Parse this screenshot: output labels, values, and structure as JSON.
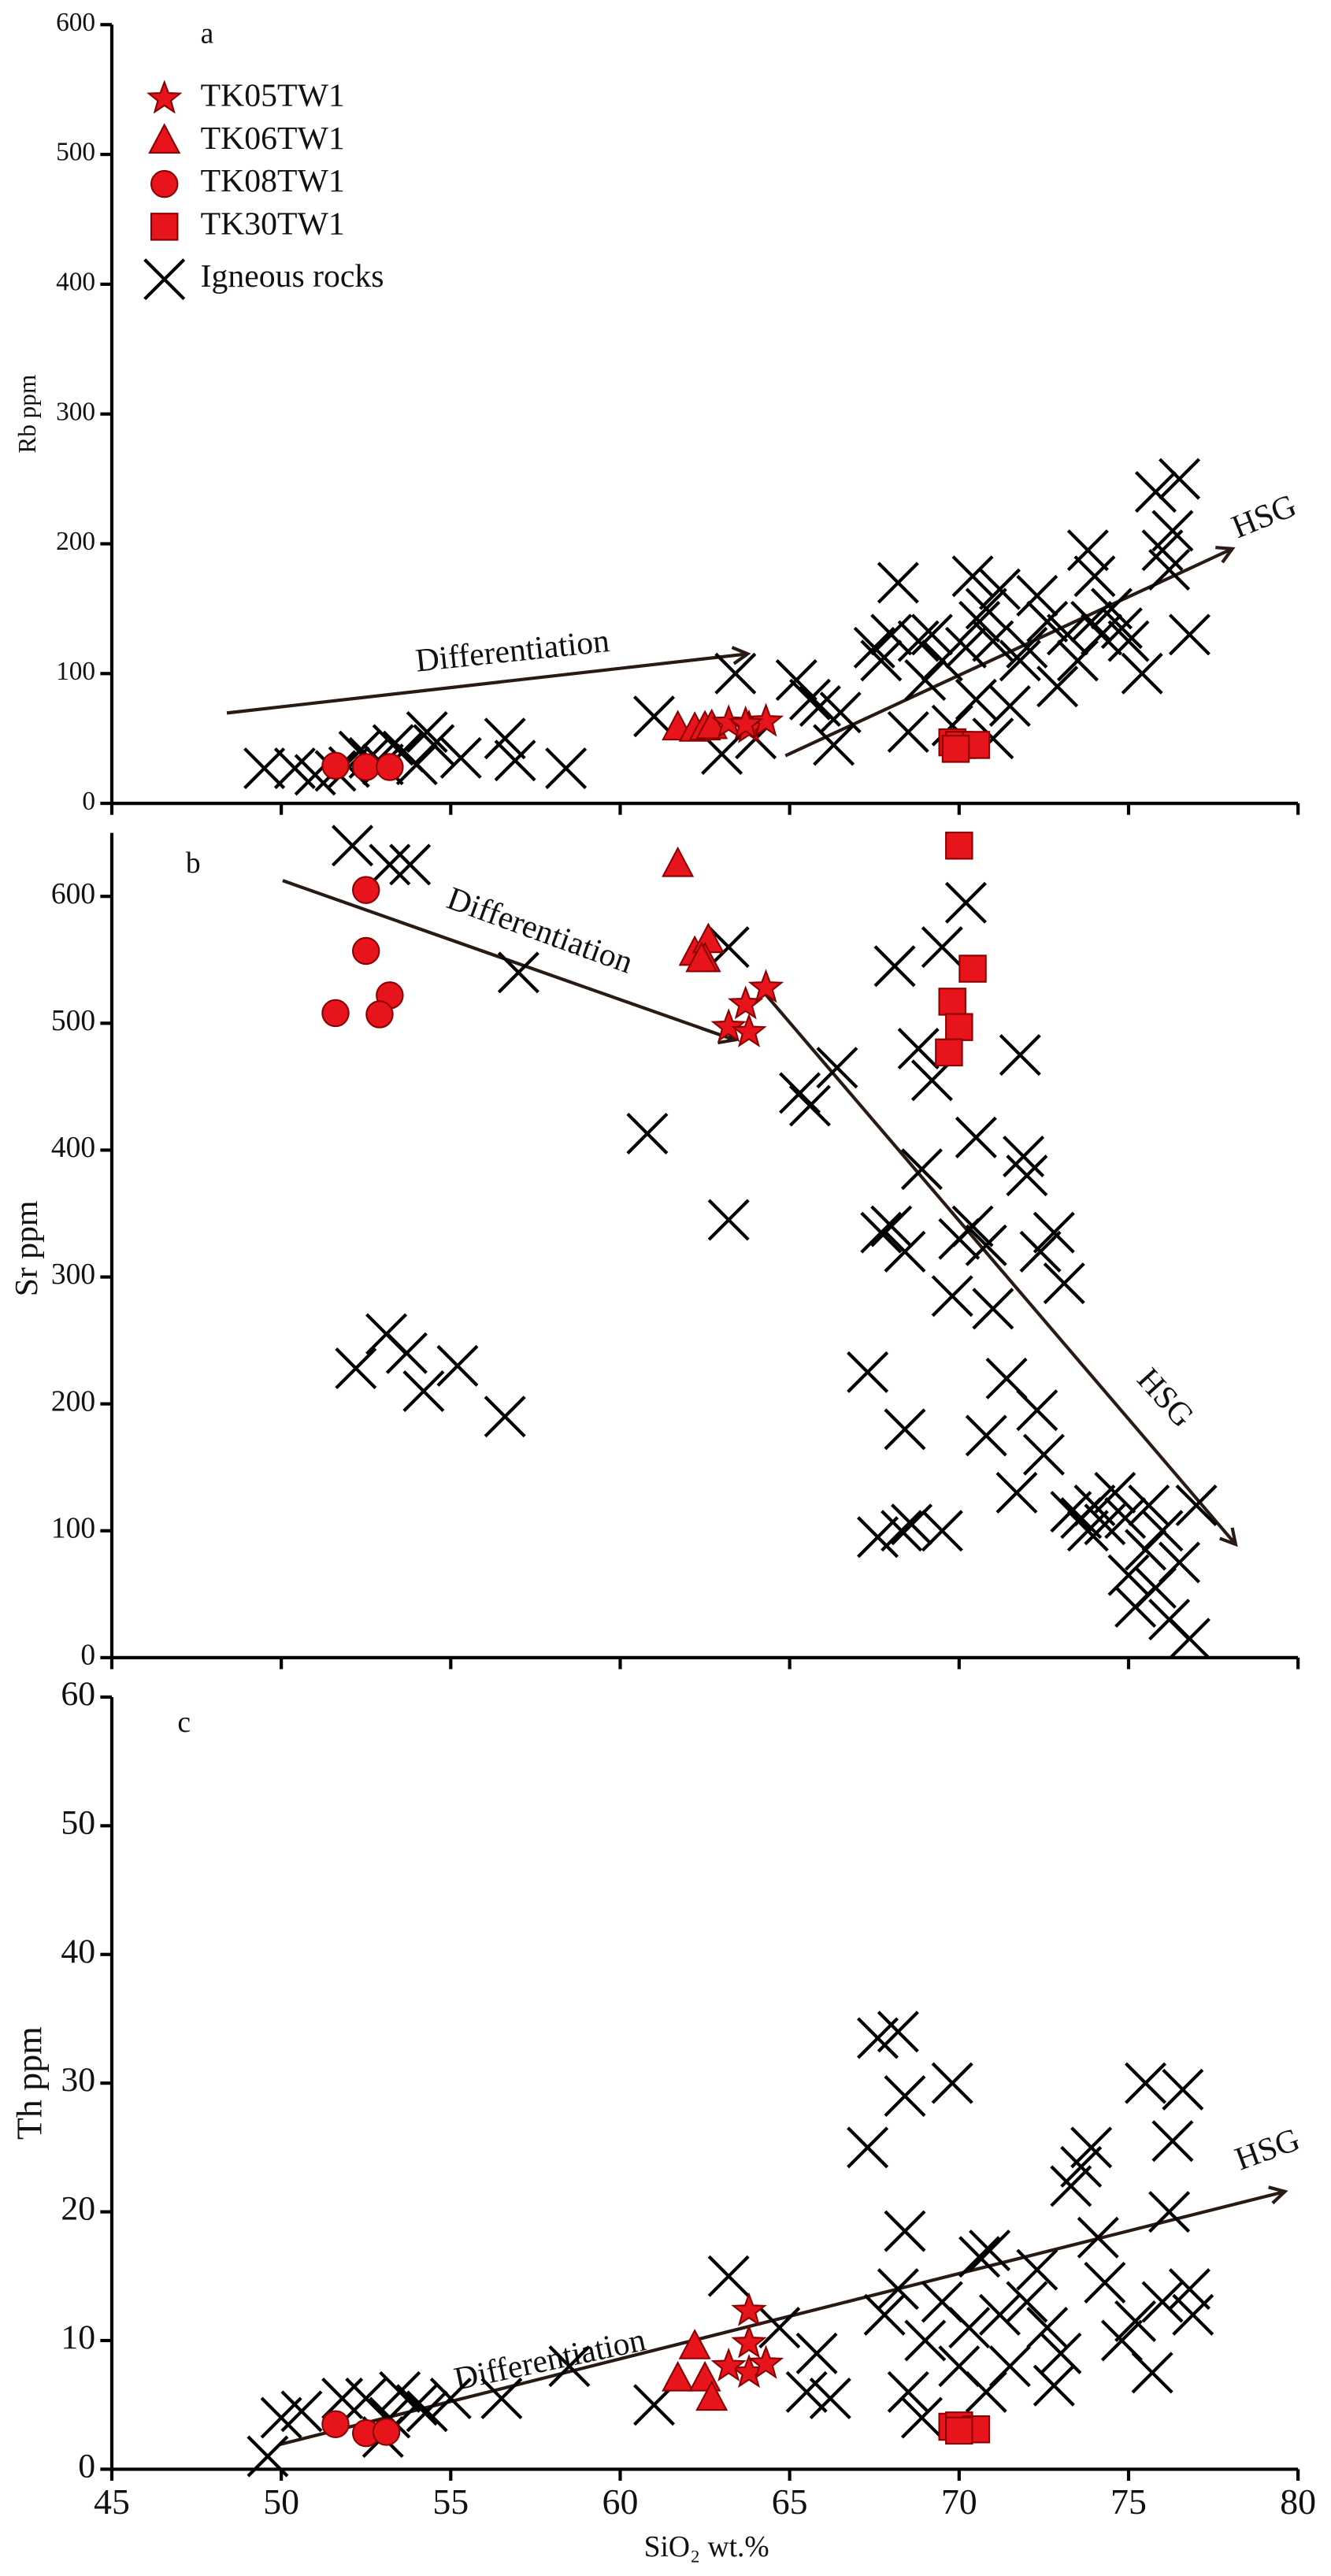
{
  "chart_data": [
    {
      "type": "scatter",
      "panel_label": "a",
      "ylabel": "Rb ppm",
      "xlim": [
        45,
        80
      ],
      "ylim": [
        0,
        600
      ],
      "yticks": [
        0,
        100,
        200,
        300,
        400,
        500,
        600
      ],
      "legend": "upper left",
      "annotations": [
        "Differentiation",
        "HSG"
      ],
      "series": [
        {
          "name": "TK05TW1",
          "color": "#e8141c",
          "marker": "star",
          "x": [
            63.2,
            63.8,
            64.3,
            63.7
          ],
          "y": [
            62,
            58,
            63,
            61
          ]
        },
        {
          "name": "TK06TW1",
          "color": "#e8141c",
          "marker": "triangle",
          "x": [
            61.7,
            62.2,
            62.5,
            62.7
          ],
          "y": [
            58,
            57,
            58,
            59
          ]
        },
        {
          "name": "TK08TW1",
          "color": "#e8141c",
          "marker": "circle",
          "x": [
            51.6,
            52.5,
            53.2
          ],
          "y": [
            29,
            28,
            28
          ]
        },
        {
          "name": "TK30TW1",
          "color": "#e8141c",
          "marker": "square",
          "x": [
            69.8,
            70.0,
            70.5,
            69.9
          ],
          "y": [
            47,
            45,
            45,
            42
          ]
        },
        {
          "name": "Igneous rocks",
          "color": "#000000",
          "marker": "x",
          "x": [
            49.5,
            50.4,
            51,
            51.6,
            52,
            52.3,
            52.6,
            53,
            53.3,
            53.6,
            54,
            54.3,
            54.5,
            55.3,
            56.6,
            56.9,
            58.4,
            61,
            63,
            63.4,
            64,
            65.2,
            65.6,
            65.9,
            66.3,
            66.5,
            67.5,
            67.7,
            68,
            68.2,
            68.5,
            68.8,
            69,
            69.2,
            69.5,
            69.8,
            70.2,
            70.4,
            70.6,
            70.8,
            71,
            71.2,
            71.5,
            71.8,
            72,
            72.3,
            72.6,
            72.9,
            73.2,
            73.5,
            73.8,
            74,
            74.2,
            74.5,
            74.8,
            75,
            75.4,
            75.8,
            76,
            76.3,
            76.5,
            76.8,
            70.5,
            71,
            76.2,
            73.9
          ],
          "y": [
            27,
            27,
            22,
            25,
            28,
            40,
            35,
            30,
            45,
            40,
            30,
            55,
            45,
            35,
            50,
            33,
            27,
            67,
            38,
            100,
            50,
            95,
            80,
            75,
            45,
            70,
            120,
            110,
            130,
            170,
            55,
            125,
            95,
            130,
            110,
            60,
            120,
            175,
            140,
            150,
            125,
            165,
            75,
            110,
            120,
            160,
            140,
            90,
            130,
            110,
            195,
            175,
            130,
            150,
            135,
            125,
            100,
            240,
            195,
            210,
            250,
            130,
            80,
            50,
            180,
            140
          ]
        }
      ]
    },
    {
      "type": "scatter",
      "panel_label": "b",
      "ylabel": "Sr ppm",
      "xlim": [
        45,
        80
      ],
      "ylim": [
        0,
        650
      ],
      "yticks": [
        0,
        100,
        200,
        300,
        400,
        500,
        600
      ],
      "annotations": [
        "Differentiation",
        "HSG"
      ],
      "series": [
        {
          "color": "#e8141c",
          "marker": "star",
          "x": [
            63.2,
            63.7,
            63.8,
            64.3
          ],
          "y": [
            497,
            515,
            493,
            528
          ]
        },
        {
          "color": "#e8141c",
          "marker": "triangle",
          "x": [
            61.7,
            62.2,
            62.6,
            62.5,
            62.4
          ],
          "y": [
            625,
            555,
            565,
            550,
            550
          ]
        },
        {
          "color": "#e8141c",
          "marker": "circle",
          "x": [
            51.6,
            52.5,
            52.5,
            53.2,
            52.9
          ],
          "y": [
            508,
            605,
            557,
            522,
            507
          ]
        },
        {
          "color": "#e8141c",
          "marker": "square",
          "x": [
            70.0,
            70.4,
            69.8,
            70.0,
            69.7
          ],
          "y": [
            640,
            543,
            517,
            497,
            477
          ]
        },
        {
          "color": "#000000",
          "marker": "x",
          "x": [
            52.1,
            53.2,
            53.8,
            52.2,
            53.1,
            53.7,
            54.2,
            55.2,
            56.6,
            57,
            60.8,
            63.2,
            63.2,
            65.3,
            65.6,
            66.4,
            67.3,
            67.6,
            67.7,
            68,
            68.1,
            68.3,
            68.4,
            68.6,
            68.4,
            68.8,
            68.9,
            69.2,
            69.5,
            69.5,
            69.8,
            70,
            70.2,
            70.4,
            70.5,
            70.8,
            70.8,
            71,
            71.4,
            71.7,
            71.8,
            71.9,
            72,
            72.3,
            72.4,
            72.5,
            72.8,
            73.1,
            73.3,
            73.6,
            73.8,
            74,
            74.3,
            74.6,
            75,
            75.2,
            75.5,
            75.8,
            76,
            76.2,
            76.5,
            76.8,
            77,
            75.6,
            74.9
          ],
          "y": [
            640,
            625,
            625,
            228,
            255,
            240,
            210,
            230,
            190,
            540,
            413,
            560,
            345,
            445,
            435,
            465,
            225,
            95,
            335,
            340,
            545,
            100,
            320,
            105,
            180,
            480,
            385,
            455,
            560,
            100,
            285,
            330,
            595,
            340,
            410,
            175,
            325,
            275,
            220,
            130,
            475,
            395,
            380,
            195,
            320,
            160,
            335,
            295,
            115,
            110,
            100,
            120,
            105,
            130,
            65,
            40,
            85,
            55,
            100,
            30,
            75,
            15,
            120,
            120,
            110
          ]
        }
      ]
    },
    {
      "type": "scatter",
      "panel_label": "c",
      "ylabel": "Th ppm",
      "xlabel": "SiO₂ wt.%",
      "xlim": [
        45,
        80
      ],
      "ylim": [
        0,
        60
      ],
      "yticks": [
        0,
        10,
        20,
        30,
        40,
        50,
        60
      ],
      "xticks": [
        45,
        50,
        55,
        60,
        65,
        70,
        75,
        80
      ],
      "annotations": [
        "Differentiation",
        "HSG"
      ],
      "series": [
        {
          "color": "#e8141c",
          "marker": "star",
          "x": [
            63.8,
            63.8,
            63.8,
            64.3,
            63.2
          ],
          "y": [
            12.3,
            9.8,
            7.5,
            8.2,
            8
          ]
        },
        {
          "color": "#e8141c",
          "marker": "triangle",
          "x": [
            62.2,
            61.7,
            62.5,
            62.7
          ],
          "y": [
            9.5,
            7,
            7,
            5.5
          ]
        },
        {
          "color": "#e8141c",
          "marker": "circle",
          "x": [
            51.6,
            52.5,
            53.1
          ],
          "y": [
            3.5,
            2.8,
            2.9
          ]
        },
        {
          "color": "#e8141c",
          "marker": "square",
          "x": [
            69.8,
            70.0,
            70.5,
            70.0
          ],
          "y": [
            3.3,
            3.4,
            3.1,
            3
          ]
        },
        {
          "color": "#000000",
          "marker": "x",
          "x": [
            49.6,
            50,
            50.6,
            51.8,
            52.5,
            53.2,
            53,
            53.5,
            54,
            54.3,
            55,
            56.5,
            58.5,
            61,
            63.2,
            64.7,
            65.5,
            65.8,
            66.2,
            67.3,
            67.6,
            68.2,
            68.4,
            68.4,
            67.8,
            68.2,
            68.5,
            69,
            69.5,
            69.8,
            70,
            70.3,
            70.6,
            70.9,
            71.2,
            71.5,
            72,
            72.3,
            72.6,
            73,
            73.3,
            73.6,
            73.9,
            74.1,
            74.3,
            74.8,
            75.2,
            75.5,
            75.7,
            76,
            76.2,
            76.3,
            76.6,
            76.9,
            76.8,
            70.8,
            72.8,
            68.9
          ],
          "y": [
            1,
            4,
            4.5,
            5.5,
            5.5,
            4,
            2.5,
            6,
            5,
            4.5,
            5.5,
            5.5,
            8,
            5,
            15,
            11,
            6,
            9,
            5.5,
            25,
            33.5,
            34,
            29,
            18.5,
            12,
            14,
            6,
            10,
            13,
            30,
            8,
            11,
            16.5,
            17,
            12,
            8,
            13,
            15.5,
            11,
            9,
            22,
            23.5,
            25,
            18,
            14.5,
            10,
            11.5,
            30,
            7.5,
            13,
            20,
            25.5,
            29.5,
            12,
            14,
            6,
            6.5,
            4
          ]
        }
      ]
    }
  ]
}
